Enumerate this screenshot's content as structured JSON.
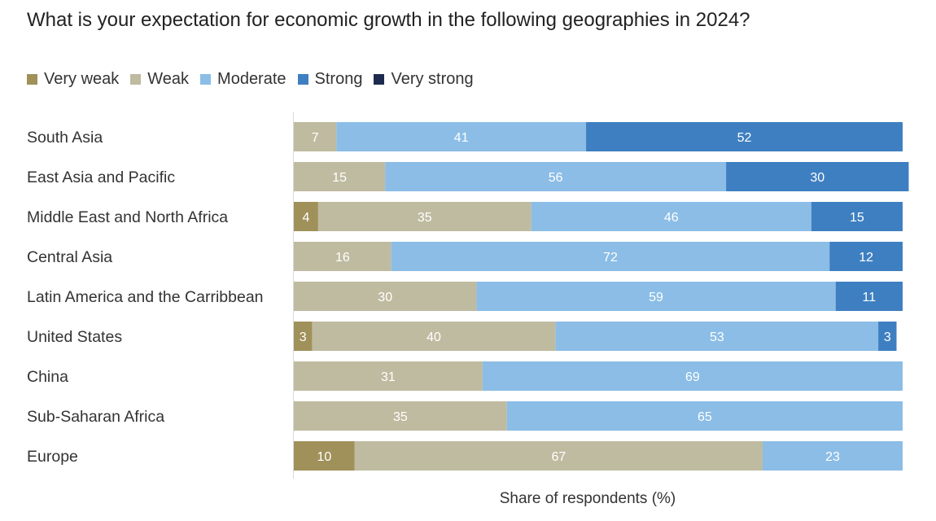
{
  "chart_data": {
    "type": "bar",
    "orientation": "horizontal",
    "stacked": true,
    "title": "What is your expectation for economic growth in the following geographies in 2024?",
    "xlabel": "Share of respondents (%)",
    "ylabel": "",
    "xlim": [
      0,
      100
    ],
    "categories": [
      "South Asia",
      "East Asia and Pacific",
      "Middle East and North Africa",
      "Central Asia",
      "Latin America and the Carribbean",
      "United States",
      "China",
      "Sub-Saharan Africa",
      "Europe"
    ],
    "series": [
      {
        "name": "Very weak",
        "color": "#a0915a",
        "values": [
          0,
          0,
          4,
          0,
          0,
          3,
          0,
          0,
          10
        ]
      },
      {
        "name": "Weak",
        "color": "#bfbba0",
        "values": [
          7,
          15,
          35,
          16,
          30,
          40,
          31,
          35,
          67
        ]
      },
      {
        "name": "Moderate",
        "color": "#8bbde6",
        "values": [
          41,
          56,
          46,
          72,
          59,
          53,
          69,
          65,
          23
        ]
      },
      {
        "name": "Strong",
        "color": "#3e7fc1",
        "values": [
          52,
          30,
          15,
          12,
          11,
          3,
          0,
          0,
          0
        ]
      },
      {
        "name": "Very strong",
        "color": "#1d2b4f",
        "values": [
          0,
          0,
          0,
          0,
          0,
          0,
          0,
          0,
          0
        ]
      }
    ]
  }
}
